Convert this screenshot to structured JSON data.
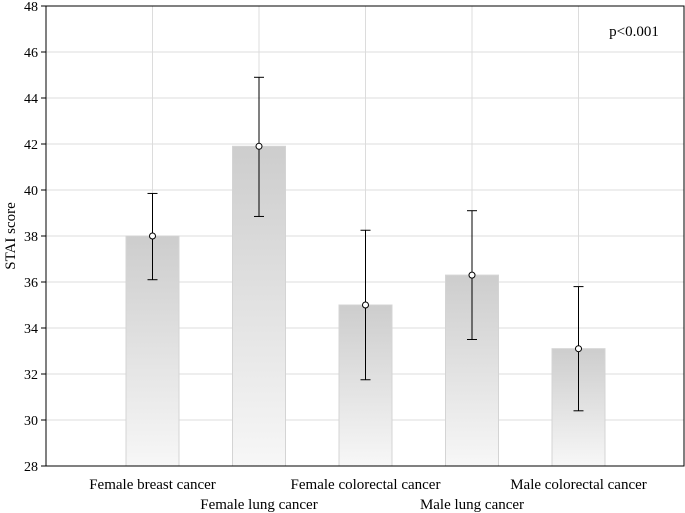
{
  "chart_data": {
    "type": "bar",
    "title": "",
    "xlabel": "",
    "ylabel": "STAI score",
    "ylim": [
      28,
      48
    ],
    "yticks": [
      28,
      30,
      32,
      34,
      36,
      38,
      40,
      42,
      44,
      46,
      48
    ],
    "grid": true,
    "categories": [
      "Female breast cancer",
      "Female lung cancer",
      "Female colorectal cancer",
      "Male lung cancer",
      "Male colorectal cancer"
    ],
    "values": [
      38.0,
      41.9,
      35.0,
      36.3,
      33.1
    ],
    "error_low": [
      36.1,
      38.85,
      31.75,
      33.5,
      30.4
    ],
    "error_high": [
      39.85,
      44.9,
      38.25,
      39.1,
      35.8
    ],
    "annotation": "p<0.001"
  }
}
